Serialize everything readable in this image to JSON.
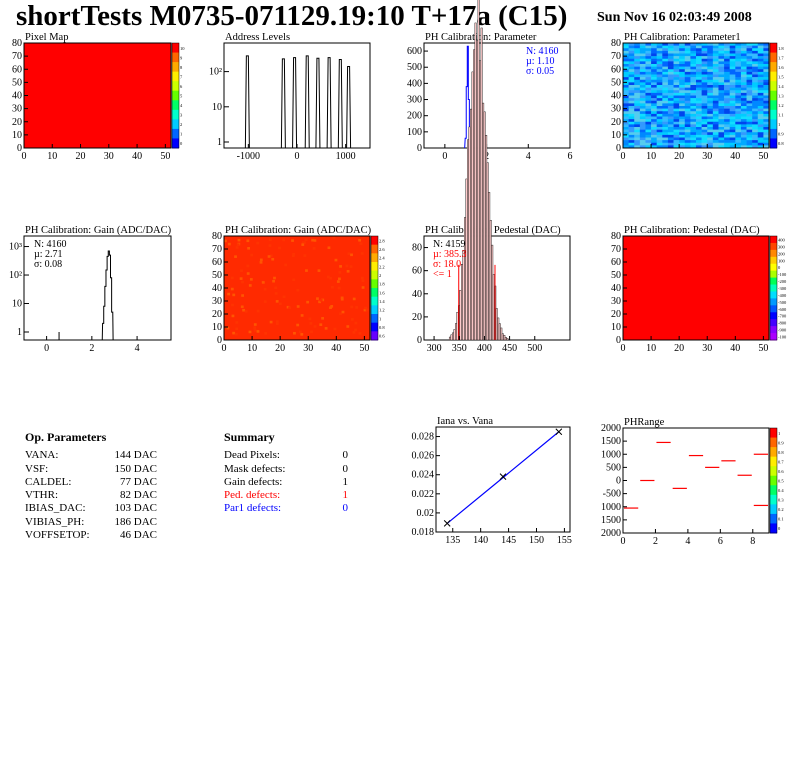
{
  "title": "shortTests M0735-071129.19:10 T+17a (C15)",
  "date": "Sun Nov 16 02:03:49 2008",
  "colors": {
    "red": "#ff0000",
    "blue": "#0000ff",
    "hist": "#000000",
    "fit": "#0000ff",
    "defect_red": "#ff0000"
  },
  "chart_data": [
    {
      "type": "heatmap",
      "title": "Pixel Map",
      "xticks": [
        "0",
        "10",
        "20",
        "30",
        "40",
        "50"
      ],
      "yticks": [
        "0",
        "10",
        "20",
        "30",
        "40",
        "50",
        "60",
        "70",
        "80"
      ],
      "xlim": [
        0,
        52
      ],
      "ylim": [
        0,
        80
      ],
      "fill": "#ff0000",
      "palette_labels": [
        "10",
        "9",
        "8",
        "7",
        "6",
        "5",
        "4",
        "3",
        "2",
        "1",
        "0"
      ]
    },
    {
      "type": "bar",
      "title": "Address Levels",
      "ylog": true,
      "xticks": [
        "-1000",
        "0",
        "1000"
      ],
      "yticks": [
        "1",
        "10",
        "10²"
      ],
      "xlim": [
        -1500,
        1500
      ],
      "peaks": [
        -1020,
        -280,
        -50,
        210,
        430,
        660,
        890,
        1060
      ],
      "peak_heights": [
        280,
        230,
        250,
        280,
        240,
        250,
        220,
        140
      ]
    },
    {
      "type": "bar",
      "title": "PH Calibration: Parameter",
      "xticks": [
        "0",
        "2",
        "4",
        "6"
      ],
      "yticks": [
        "0",
        "100",
        "200",
        "300",
        "400",
        "500",
        "600"
      ],
      "xlim": [
        -1,
        6
      ],
      "ylim": [
        0,
        650
      ],
      "bins_x": [
        1.0,
        1.05,
        1.1,
        1.15,
        1.2
      ],
      "bins_y": [
        60,
        380,
        630,
        300,
        40
      ],
      "stats": [
        "N: 4160",
        "µ: 1.10",
        "σ: 0.05"
      ]
    },
    {
      "type": "heatmap",
      "title": "PH Calibration: Parameter1",
      "xticks": [
        "0",
        "10",
        "20",
        "30",
        "40",
        "50"
      ],
      "yticks": [
        "0",
        "10",
        "20",
        "30",
        "40",
        "50",
        "60",
        "70",
        "80"
      ],
      "xlim": [
        0,
        52
      ],
      "ylim": [
        0,
        80
      ],
      "palette_labels": [
        "1.8",
        "1.7",
        "1.6",
        "1.5",
        "1.4",
        "1.3",
        "1.2",
        "1.1",
        "1",
        "0.9",
        "0.8"
      ]
    },
    {
      "type": "bar",
      "title": "PH Calibration: Gain (ADC/DAC)",
      "ylog": true,
      "xticks": [
        "0",
        "2",
        "4"
      ],
      "yticks": [
        "1",
        "10",
        "10²",
        "10³"
      ],
      "xlim": [
        -1,
        5.5
      ],
      "bins_x": [
        2.5,
        2.55,
        2.6,
        2.65,
        2.7,
        2.75,
        2.8,
        2.85,
        2.9
      ],
      "bins_y": [
        2,
        8,
        40,
        150,
        450,
        700,
        500,
        80,
        5
      ],
      "stats": [
        "N: 4160",
        "µ: 2.71",
        "σ: 0.08"
      ]
    },
    {
      "type": "heatmap",
      "title": "PH Calibration: Gain (ADC/DAC)",
      "xticks": [
        "0",
        "10",
        "20",
        "30",
        "40",
        "50"
      ],
      "yticks": [
        "0",
        "10",
        "20",
        "30",
        "40",
        "50",
        "60",
        "70",
        "80"
      ],
      "xlim": [
        0,
        52
      ],
      "ylim": [
        0,
        80
      ],
      "fill": "#ff2a00",
      "palette_labels": [
        "2.8",
        "2.6",
        "2.4",
        "2.2",
        "2",
        "1.8",
        "1.6",
        "1.4",
        "1.2",
        "1",
        "0.8",
        "0.6"
      ]
    },
    {
      "type": "bar",
      "title": "PH Calibration: Pedestal (DAC)",
      "xticks": [
        "300",
        "350",
        "400",
        "450",
        "500"
      ],
      "yticks": [
        "0",
        "20",
        "40",
        "60",
        "80"
      ],
      "xlim": [
        280,
        570
      ],
      "ylim": [
        0,
        90
      ],
      "mean": 385.3,
      "sigma": 18.0,
      "cut_lines": [
        349,
        421
      ],
      "stats": [
        "N: 4159",
        "µ: 385.3",
        "σ: 18.0",
        "<= 1"
      ]
    },
    {
      "type": "heatmap",
      "title": "PH Calibration: Pedestal (DAC)",
      "xticks": [
        "0",
        "10",
        "20",
        "30",
        "40",
        "50"
      ],
      "yticks": [
        "0",
        "10",
        "20",
        "30",
        "40",
        "50",
        "60",
        "70",
        "80"
      ],
      "xlim": [
        0,
        52
      ],
      "ylim": [
        0,
        80
      ],
      "fill": "#ff0000",
      "palette_labels": [
        "400",
        "300",
        "200",
        "100",
        "0",
        "-100",
        "-200",
        "-300",
        "-400",
        "-500",
        "-600",
        "-700",
        "-800",
        "-900",
        "-100"
      ]
    },
    {
      "type": "line",
      "title": "Iana vs. Vana",
      "xticks": [
        "135",
        "140",
        "145",
        "150",
        "155"
      ],
      "yticks": [
        "0.018",
        "0.02",
        "0.022",
        "0.024",
        "0.026",
        "0.028"
      ],
      "xlim": [
        132,
        156
      ],
      "ylim": [
        0.018,
        0.029
      ],
      "x": [
        134,
        144,
        154
      ],
      "y": [
        0.0189,
        0.0238,
        0.0285
      ]
    },
    {
      "type": "scatter",
      "title": "PHRange",
      "xticks": [
        "0",
        "2",
        "4",
        "6",
        "8"
      ],
      "yticks": [
        "2000",
        "1500",
        "1000",
        "500",
        "0",
        "-500",
        "1000",
        "1500",
        "2000"
      ],
      "xlim": [
        0,
        9
      ],
      "ylim": [
        -2000,
        2000
      ],
      "x": [
        0.5,
        1.5,
        2.5,
        3.5,
        4.5,
        5.5,
        6.5,
        7.5,
        8.5
      ],
      "y": [
        -1050,
        0,
        1450,
        -300,
        950,
        500,
        750,
        200,
        1000
      ],
      "extra_x": [
        8.5
      ],
      "extra_y": [
        -950
      ],
      "palette_labels": [
        "1",
        "0.9",
        "0.8",
        "0.7",
        "0.6",
        "0.5",
        "0.4",
        "0.3",
        "0.2",
        "0.1",
        "0"
      ]
    }
  ],
  "op_params": {
    "heading": "Op. Parameters",
    "rows": [
      {
        "label": "VANA:",
        "value": "144 DAC"
      },
      {
        "label": "VSF:",
        "value": "150 DAC"
      },
      {
        "label": "CALDEL:",
        "value": "77 DAC"
      },
      {
        "label": "VTHR:",
        "value": "82 DAC"
      },
      {
        "label": "IBIAS_DAC:",
        "value": "103 DAC"
      },
      {
        "label": "VIBIAS_PH:",
        "value": "186 DAC"
      },
      {
        "label": "VOFFSETOP:",
        "value": "46 DAC"
      }
    ]
  },
  "summary": {
    "heading": "Summary",
    "rows": [
      {
        "label": "Dead Pixels:",
        "value": "0",
        "color": "#000000"
      },
      {
        "label": "Mask defects:",
        "value": "0",
        "color": "#000000"
      },
      {
        "label": "Gain defects:",
        "value": "1",
        "color": "#000000"
      },
      {
        "label": "Ped. defects:",
        "value": "1",
        "color": "#ff0000"
      },
      {
        "label": "Par1 defects:",
        "value": "0",
        "color": "#0000ff"
      }
    ]
  }
}
